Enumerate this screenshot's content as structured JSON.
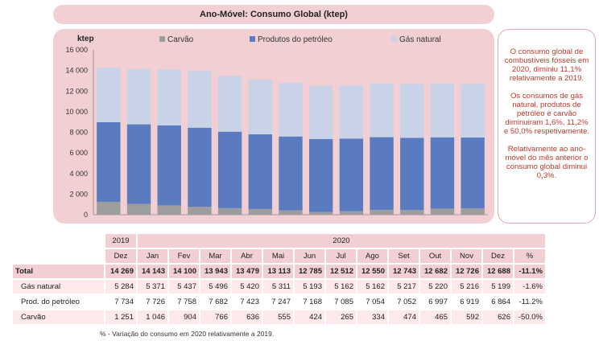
{
  "title": "Ano-Móvel: Consumo Global (ktep)",
  "chart_data": {
    "type": "bar",
    "stacked": true,
    "ylabel": "ktep",
    "ylim": [
      0,
      16000
    ],
    "yticks": [
      "0",
      "2 000",
      "4 000",
      "6 000",
      "8 000",
      "10 000",
      "12 000",
      "14 000",
      "16 000"
    ],
    "categories": [
      "Dez 2019",
      "Jan",
      "Fev",
      "Mar",
      "Abr",
      "Mai",
      "Jun",
      "Jul",
      "Ago",
      "Set",
      "Out",
      "Nov",
      "Dez"
    ],
    "legend_position": "top",
    "series": [
      {
        "name": "Carvão",
        "color": "#9d9d9d",
        "values": [
          1251,
          1046,
          904,
          766,
          636,
          555,
          424,
          265,
          334,
          474,
          465,
          592,
          626
        ]
      },
      {
        "name": "Produtos do petróleo",
        "color": "#5a7bbf",
        "values": [
          7734,
          7726,
          7758,
          7682,
          7423,
          7247,
          7168,
          7085,
          7054,
          7052,
          6997,
          6919,
          6864
        ]
      },
      {
        "name": "Gás natural",
        "color": "#c9d3e7",
        "values": [
          5284,
          5371,
          5437,
          5496,
          5420,
          5311,
          5193,
          5162,
          5162,
          5217,
          5220,
          5216,
          5199
        ]
      }
    ]
  },
  "notes": [
    "O consumo global de combustíveis fósseis em 2020, diminiu 11,1% relativamente a 2019.",
    "Os consumos de gás natural, produtos de petróleo e carvão diminuiram 1,6%, 11,2% e 50,0% respetivamente.",
    "Relativamente ao ano-móvel do mês anterior o consumo global diminui 0,3%."
  ],
  "table": {
    "year1": "2019",
    "year2": "2020",
    "columns": [
      "Dez",
      "Jan",
      "Fev",
      "Mar",
      "Abr",
      "Mai",
      "Jun",
      "Jul",
      "Ago",
      "Set",
      "Out",
      "Nov",
      "Dez",
      "%"
    ],
    "rows": [
      {
        "label": "Total",
        "values": [
          "14 269",
          "14 143",
          "14 100",
          "13 943",
          "13 479",
          "13 113",
          "12 785",
          "12 512",
          "12 550",
          "12 743",
          "12 682",
          "12 726",
          "12 688",
          "-11.1%"
        ]
      },
      {
        "label": "Gás natural",
        "values": [
          "5 284",
          "5 371",
          "5 437",
          "5 496",
          "5 420",
          "5 311",
          "5 193",
          "5 162",
          "5 162",
          "5 217",
          "5 220",
          "5 216",
          "5 199",
          "-1.6%"
        ]
      },
      {
        "label": "Prod. do petróleo",
        "values": [
          "7 734",
          "7 726",
          "7 758",
          "7 682",
          "7 423",
          "7 247",
          "7 168",
          "7 085",
          "7 054",
          "7 052",
          "6 997",
          "6 919",
          "6 864",
          "-11.2%"
        ]
      },
      {
        "label": "Carvão",
        "values": [
          "1 251",
          "1 046",
          "904",
          "766",
          "636",
          "555",
          "424",
          "265",
          "334",
          "474",
          "465",
          "592",
          "626",
          "-50.0%"
        ]
      }
    ]
  },
  "footnote": "% - Variação do consumo em 2020 relativamente a 2019."
}
